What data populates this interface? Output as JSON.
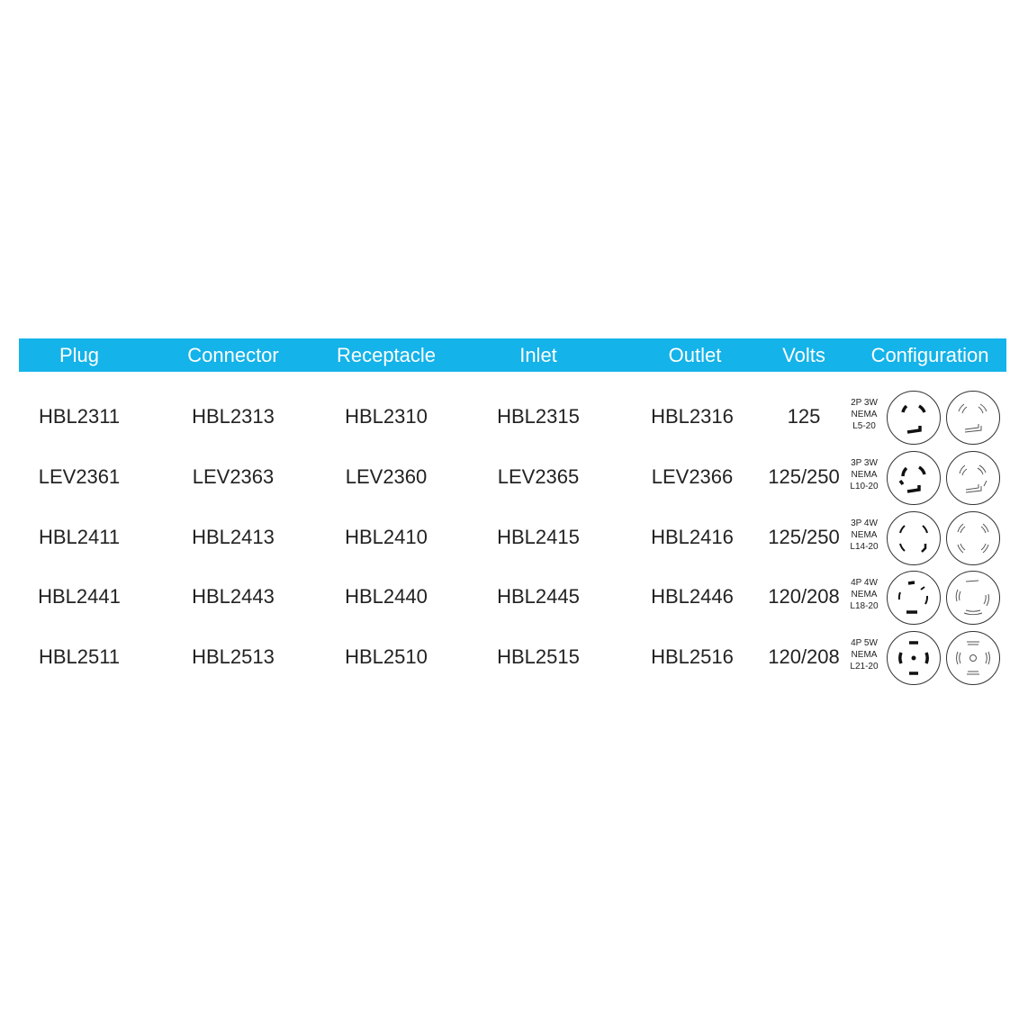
{
  "header": {
    "plug": "Plug",
    "connector": "Connector",
    "receptacle": "Receptacle",
    "inlet": "Inlet",
    "outlet": "Outlet",
    "volts": "Volts",
    "configuration": "Configuration"
  },
  "rows": [
    {
      "plug": "HBL2311",
      "connector": "HBL2313",
      "receptacle": "HBL2310",
      "inlet": "HBL2315",
      "outlet": "HBL2316",
      "volts": "125",
      "config": {
        "poles": "2P 3W",
        "std": "NEMA",
        "code": "L5-20"
      }
    },
    {
      "plug": "LEV2361",
      "connector": "LEV2363",
      "receptacle": "LEV2360",
      "inlet": "LEV2365",
      "outlet": "LEV2366",
      "volts": "125/250",
      "config": {
        "poles": "3P 3W",
        "std": "NEMA",
        "code": "L10-20"
      }
    },
    {
      "plug": "HBL2411",
      "connector": "HBL2413",
      "receptacle": "HBL2410",
      "inlet": "HBL2415",
      "outlet": "HBL2416",
      "volts": "125/250",
      "config": {
        "poles": "3P 4W",
        "std": "NEMA",
        "code": "L14-20"
      }
    },
    {
      "plug": "HBL2441",
      "connector": "HBL2443",
      "receptacle": "HBL2440",
      "inlet": "HBL2445",
      "outlet": "HBL2446",
      "volts": "120/208",
      "config": {
        "poles": "4P 4W",
        "std": "NEMA",
        "code": "L18-20"
      }
    },
    {
      "plug": "HBL2511",
      "connector": "HBL2513",
      "receptacle": "HBL2510",
      "inlet": "HBL2515",
      "outlet": "HBL2516",
      "volts": "120/208",
      "config": {
        "poles": "4P 5W",
        "std": "NEMA",
        "code": "L21-20"
      }
    }
  ],
  "colors": {
    "header_bg": "#14b3e9",
    "header_text": "#ffffff",
    "text": "#222222"
  }
}
